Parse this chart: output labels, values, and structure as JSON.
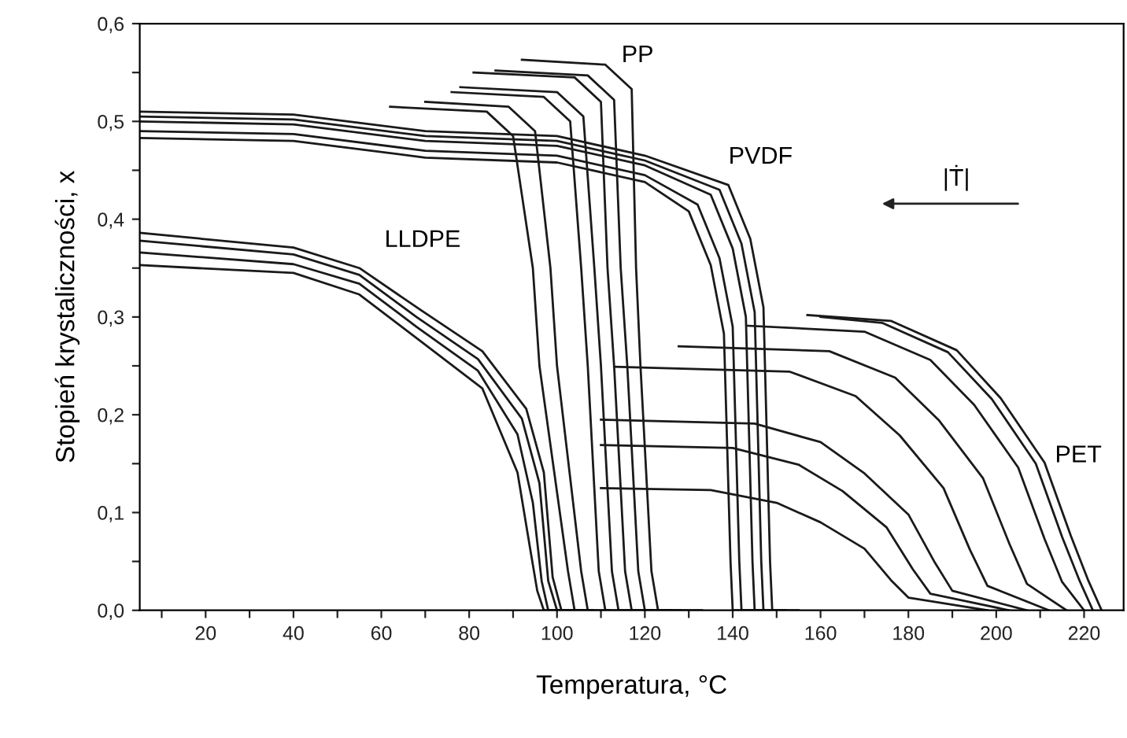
{
  "chart_data": {
    "type": "line",
    "xlabel": "Temperatura, °C",
    "ylabel": "Stopień krystaliczności, x",
    "xlim": [
      5,
      229
    ],
    "ylim": [
      0,
      0.6
    ],
    "xticks": [
      {
        "value": 10,
        "label": null
      },
      20,
      {
        "value": 30,
        "label": null
      },
      40,
      {
        "value": 50,
        "label": null
      },
      60,
      {
        "value": 70,
        "label": null
      },
      80,
      {
        "value": 90,
        "label": null
      },
      100,
      {
        "value": 110,
        "label": null
      },
      120,
      {
        "value": 130,
        "label": null
      },
      140,
      {
        "value": 150,
        "label": null
      },
      160,
      {
        "value": 170,
        "label": null
      },
      180,
      {
        "value": 190,
        "label": null
      },
      200,
      {
        "value": 210,
        "label": null
      },
      220
    ],
    "yticks": [
      {
        "value": 0,
        "label": "0,0"
      },
      {
        "value": 0.05,
        "label": null
      },
      {
        "value": 0.1,
        "label": "0,1"
      },
      {
        "value": 0.15,
        "label": null
      },
      {
        "value": 0.2,
        "label": "0,2"
      },
      {
        "value": 0.25,
        "label": null
      },
      {
        "value": 0.3,
        "label": "0,3"
      },
      {
        "value": 0.35,
        "label": null
      },
      {
        "value": 0.4,
        "label": "0,4"
      },
      {
        "value": 0.45,
        "label": null
      },
      {
        "value": 0.5,
        "label": "0,5"
      },
      {
        "value": 0.55,
        "label": null
      },
      {
        "value": 0.6,
        "label": "0,6"
      }
    ],
    "grid": false,
    "marker": "none",
    "line_style": "solid",
    "annotations": [
      "LLDPE",
      "PP",
      "PVDF",
      "PET",
      "|Ṫ|"
    ],
    "series": [
      {
        "color": "#1a1a1a",
        "x": [
          5,
          40,
          55,
          69,
          83,
          93,
          97,
          99,
          101,
          108
        ],
        "values": [
          0.386,
          0.371,
          0.35,
          0.307,
          0.265,
          0.206,
          0.141,
          0.034,
          0,
          0
        ]
      },
      {
        "color": "#1a1a1a",
        "x": [
          5,
          40,
          55,
          68,
          82,
          92,
          96,
          98,
          100,
          106
        ],
        "values": [
          0.378,
          0.364,
          0.343,
          0.3,
          0.257,
          0.196,
          0.13,
          0.03,
          0,
          0
        ]
      },
      {
        "color": "#1a1a1a",
        "x": [
          5,
          40,
          55,
          68,
          82,
          91,
          94.5,
          96.5,
          98,
          104
        ],
        "values": [
          0.366,
          0.354,
          0.334,
          0.29,
          0.245,
          0.18,
          0.11,
          0.03,
          0,
          0
        ]
      },
      {
        "color": "#1a1a1a",
        "x": [
          5,
          40,
          55,
          69,
          83,
          91,
          94,
          95.5,
          97,
          102
        ],
        "values": [
          0.353,
          0.345,
          0.323,
          0.275,
          0.227,
          0.141,
          0.06,
          0.02,
          0,
          0
        ]
      },
      {
        "color": "#1a1a1a",
        "x": [
          62,
          84,
          90,
          94.5,
          96,
          102.5,
          104,
          108
        ],
        "values": [
          0.515,
          0.51,
          0.485,
          0.35,
          0.25,
          0.04,
          0,
          0
        ]
      },
      {
        "color": "#1a1a1a",
        "x": [
          70,
          89,
          95,
          98.5,
          100,
          105.5,
          107,
          112
        ],
        "values": [
          0.52,
          0.515,
          0.49,
          0.35,
          0.25,
          0.04,
          0,
          0
        ]
      },
      {
        "color": "#1a1a1a",
        "x": [
          76,
          97,
          103,
          105.5,
          107,
          109.5,
          111,
          118
        ],
        "values": [
          0.53,
          0.525,
          0.5,
          0.35,
          0.25,
          0.04,
          0,
          0
        ]
      },
      {
        "color": "#1a1a1a",
        "x": [
          78,
          100,
          106,
          108.5,
          110,
          112.5,
          114,
          122
        ],
        "values": [
          0.535,
          0.53,
          0.505,
          0.35,
          0.25,
          0.04,
          0,
          0
        ]
      },
      {
        "color": "#1a1a1a",
        "x": [
          81,
          104,
          110,
          111.5,
          113,
          115.5,
          117,
          126
        ],
        "values": [
          0.55,
          0.545,
          0.52,
          0.35,
          0.25,
          0.04,
          0,
          0
        ]
      },
      {
        "color": "#1a1a1a",
        "x": [
          86,
          107,
          113,
          114.5,
          116,
          118.5,
          120,
          128
        ],
        "values": [
          0.552,
          0.547,
          0.522,
          0.35,
          0.25,
          0.04,
          0,
          0
        ]
      },
      {
        "color": "#1a1a1a",
        "x": [
          92,
          111,
          117,
          118,
          119,
          121.5,
          123,
          133
        ],
        "values": [
          0.563,
          0.558,
          0.533,
          0.35,
          0.25,
          0.04,
          0,
          0
        ]
      },
      {
        "color": "#1a1a1a",
        "x": [
          5,
          40,
          70,
          100,
          120,
          130,
          135,
          138,
          139.5,
          140,
          145
        ],
        "values": [
          0.483,
          0.48,
          0.463,
          0.458,
          0.438,
          0.408,
          0.353,
          0.283,
          0.05,
          0,
          0
        ]
      },
      {
        "color": "#1a1a1a",
        "x": [
          5,
          40,
          70,
          100,
          120,
          132,
          137,
          140,
          141.5,
          142,
          147
        ],
        "values": [
          0.49,
          0.487,
          0.47,
          0.465,
          0.445,
          0.415,
          0.36,
          0.29,
          0.05,
          0,
          0
        ]
      },
      {
        "color": "#1a1a1a",
        "x": [
          5,
          40,
          70,
          100,
          120,
          135,
          140,
          143,
          144.5,
          145,
          150
        ],
        "values": [
          0.5,
          0.497,
          0.48,
          0.475,
          0.455,
          0.425,
          0.37,
          0.3,
          0.05,
          0,
          0
        ]
      },
      {
        "color": "#1a1a1a",
        "x": [
          5,
          40,
          70,
          100,
          120,
          137,
          142,
          145,
          146.5,
          147,
          152
        ],
        "values": [
          0.505,
          0.502,
          0.485,
          0.48,
          0.46,
          0.43,
          0.375,
          0.305,
          0.05,
          0,
          0
        ]
      },
      {
        "color": "#1a1a1a",
        "x": [
          5,
          40,
          70,
          100,
          120,
          139,
          144,
          147,
          148.5,
          149,
          155
        ],
        "values": [
          0.51,
          0.507,
          0.49,
          0.485,
          0.465,
          0.435,
          0.38,
          0.31,
          0.05,
          0,
          0
        ]
      },
      {
        "color": "#1a1a1a",
        "x": [
          157,
          176,
          191,
          201,
          211,
          217,
          221,
          224
        ],
        "values": [
          0.302,
          0.296,
          0.266,
          0.217,
          0.151,
          0.076,
          0.03,
          0
        ]
      },
      {
        "color": "#1a1a1a",
        "x": [
          160,
          174,
          189,
          199,
          209,
          215,
          219,
          222
        ],
        "values": [
          0.3,
          0.294,
          0.264,
          0.216,
          0.15,
          0.075,
          0.03,
          0
        ]
      },
      {
        "color": "#1a1a1a",
        "x": [
          143.5,
          170,
          185,
          195,
          205,
          211,
          215,
          220
        ],
        "values": [
          0.291,
          0.285,
          0.256,
          0.21,
          0.146,
          0.073,
          0.029,
          0
        ]
      },
      {
        "color": "#1a1a1a",
        "x": [
          127.7,
          162,
          177,
          187,
          197,
          203,
          207,
          216
        ],
        "values": [
          0.27,
          0.265,
          0.238,
          0.194,
          0.135,
          0.068,
          0.027,
          0
        ]
      },
      {
        "color": "#1a1a1a",
        "x": [
          113,
          153,
          168,
          178,
          188,
          194,
          198,
          212
        ],
        "values": [
          0.249,
          0.244,
          0.219,
          0.179,
          0.125,
          0.062,
          0.025,
          0
        ]
      },
      {
        "color": "#1a1a1a",
        "x": [
          110,
          145,
          160,
          170,
          180,
          186,
          190,
          207
        ],
        "values": [
          0.195,
          0.191,
          0.172,
          0.14,
          0.098,
          0.049,
          0.02,
          0
        ]
      },
      {
        "color": "#1a1a1a",
        "x": [
          110,
          140,
          155,
          165,
          175,
          181,
          185,
          203
        ],
        "values": [
          0.169,
          0.166,
          0.149,
          0.122,
          0.085,
          0.042,
          0.017,
          0
        ]
      },
      {
        "color": "#1a1a1a",
        "x": [
          110,
          135,
          150,
          160,
          170,
          176,
          180,
          198
        ],
        "values": [
          0.125,
          0.123,
          0.11,
          0.09,
          0.063,
          0.031,
          0.013,
          0
        ]
      }
    ]
  }
}
